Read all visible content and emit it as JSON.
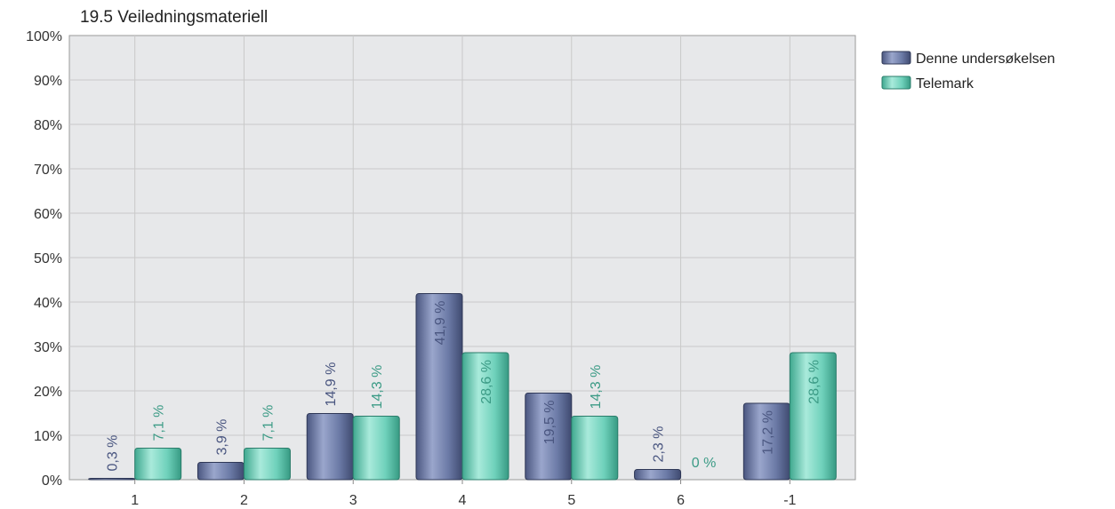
{
  "chart_data": {
    "type": "bar",
    "title": "19.5 Veiledningsmateriell",
    "xlabel": "",
    "ylabel": "",
    "ylim": [
      0,
      100
    ],
    "y_ticks": [
      "0%",
      "10%",
      "20%",
      "30%",
      "40%",
      "50%",
      "60%",
      "70%",
      "80%",
      "90%",
      "100%"
    ],
    "categories": [
      "1",
      "2",
      "3",
      "4",
      "5",
      "6",
      "-1"
    ],
    "grid": true,
    "legend_position": "top-right",
    "series": [
      {
        "name": "Denne undersøkelsen",
        "color": "#6b7aa6",
        "values": [
          0.3,
          3.9,
          14.9,
          41.9,
          19.5,
          2.3,
          17.2
        ],
        "labels": [
          "0,3 %",
          "3,9 %",
          "14,9 %",
          "41,9 %",
          "19,5 %",
          "2,3 %",
          "17,2 %"
        ]
      },
      {
        "name": "Telemark",
        "color": "#6fd1bb",
        "values": [
          7.1,
          7.1,
          14.3,
          28.6,
          14.3,
          0,
          28.6
        ],
        "labels": [
          "7,1 %",
          "7,1 %",
          "14,3 %",
          "28,6 %",
          "14,3 %",
          "0 %",
          "28,6 %"
        ]
      }
    ]
  }
}
